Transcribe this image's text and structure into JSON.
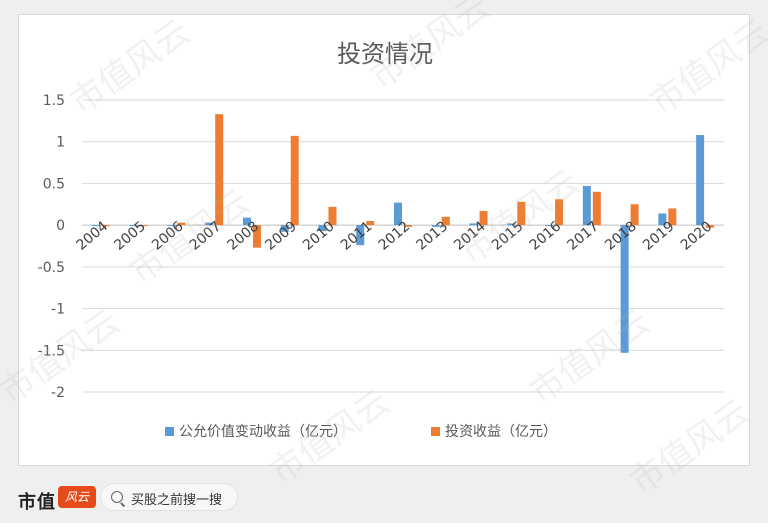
{
  "chart_data": {
    "type": "bar",
    "title": "投资情况",
    "categories": [
      "2004",
      "2005",
      "2006",
      "2007",
      "2008",
      "2009",
      "2010",
      "2011",
      "2012",
      "2013",
      "2014",
      "2015",
      "2016",
      "2017",
      "2018",
      "2019",
      "2020"
    ],
    "series": [
      {
        "name": "公允价值变动收益（亿元）",
        "color": "#5b9bd5",
        "values": [
          0,
          0,
          0,
          0.03,
          0.09,
          -0.08,
          -0.07,
          -0.24,
          0.27,
          -0.02,
          0.02,
          0.02,
          0,
          0.47,
          -1.53,
          0.14,
          1.08
        ]
      },
      {
        "name": "投资收益（亿元）",
        "color": "#ed7d31",
        "values": [
          -0.01,
          -0.01,
          0.03,
          1.33,
          -0.27,
          1.07,
          0.22,
          0.05,
          -0.02,
          0.1,
          0.17,
          0.28,
          0.31,
          0.4,
          0.25,
          0.2,
          -0.03
        ]
      }
    ],
    "y_ticks": [
      "1.5",
      "1",
      "0.5",
      "0",
      "-0.5",
      "-1",
      "-1.5",
      "-2"
    ],
    "ylim": [
      -2,
      1.5
    ],
    "grid": true,
    "legend": "bottom"
  },
  "footer": {
    "brand": "市值",
    "badge": "风云",
    "search_text": "买股之前搜一搜"
  },
  "watermark_text": "市值风云"
}
